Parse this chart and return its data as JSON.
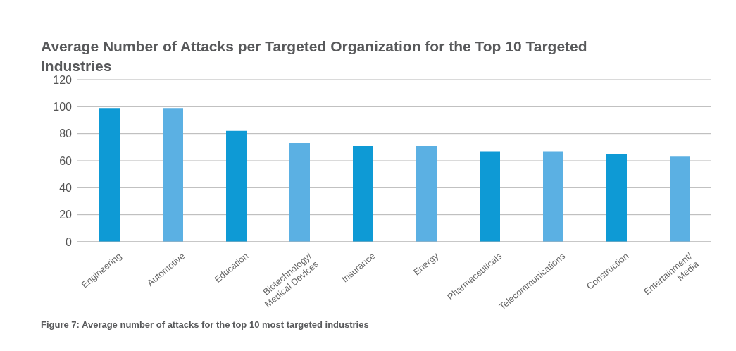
{
  "chart_data": {
    "type": "bar",
    "title": "Average Number of Attacks per Targeted Organization for the Top 10 Targeted Industries",
    "categories": [
      "Engineering",
      "Automotive",
      "Education",
      "Biotechnology/\nMedical Devices",
      "Insurance",
      "Energy",
      "Pharmaceuticals",
      "Telecommunications",
      "Construction",
      "Entertainment/\nMedia"
    ],
    "values": [
      99,
      99,
      82,
      73,
      71,
      71,
      67,
      67,
      65,
      63
    ],
    "colors": [
      "#0e9ad5",
      "#5bb0e3",
      "#0e9ad5",
      "#5bb0e3",
      "#0e9ad5",
      "#5bb0e3",
      "#0e9ad5",
      "#5bb0e3",
      "#0e9ad5",
      "#5bb0e3"
    ],
    "ylim": [
      0,
      120
    ],
    "yticks": [
      0,
      20,
      40,
      60,
      80,
      100,
      120
    ],
    "grid": "y",
    "legend": false,
    "annotations": [
      "Figure 7: Average number of attacks for the top 10 most targeted industries"
    ]
  }
}
